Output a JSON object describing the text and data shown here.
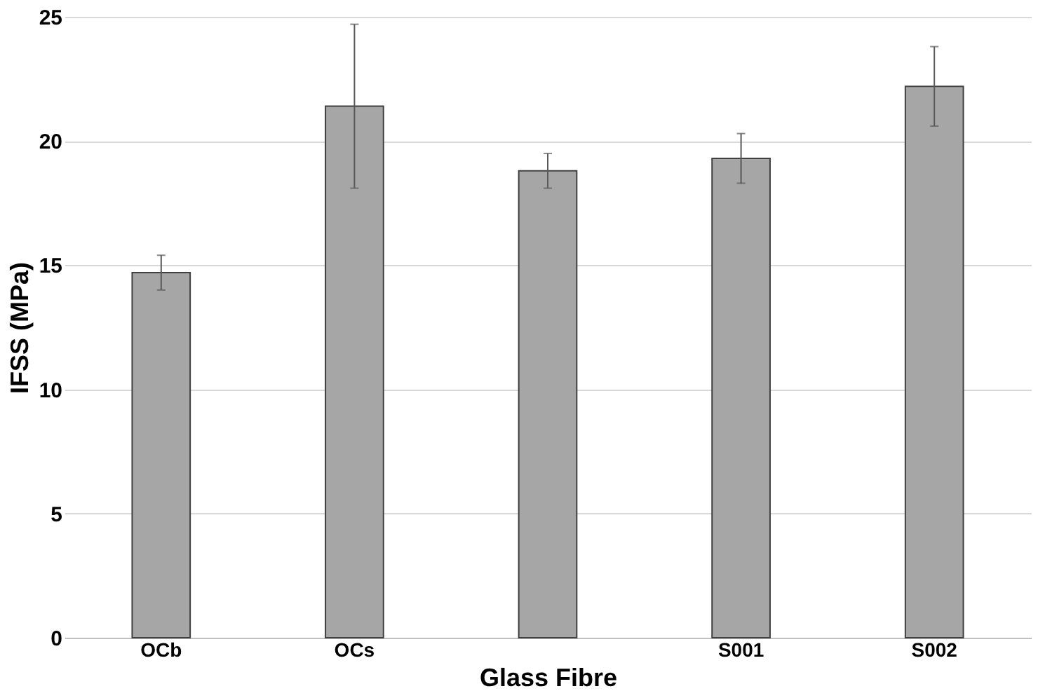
{
  "chart_data": {
    "type": "bar",
    "xlabel": "Glass Fibre",
    "ylabel": "IFSS (MPa)",
    "categories": [
      "OCb",
      "OCs",
      null,
      "S001",
      "S002"
    ],
    "values": [
      14.7,
      21.4,
      18.8,
      19.3,
      22.2
    ],
    "errors": [
      0.7,
      3.3,
      0.7,
      1.0,
      1.6
    ],
    "color": "#a6a6a6",
    "ylim": [
      0,
      25
    ],
    "yticks": [
      0,
      5,
      10,
      15,
      20,
      25
    ],
    "grid": "y"
  }
}
